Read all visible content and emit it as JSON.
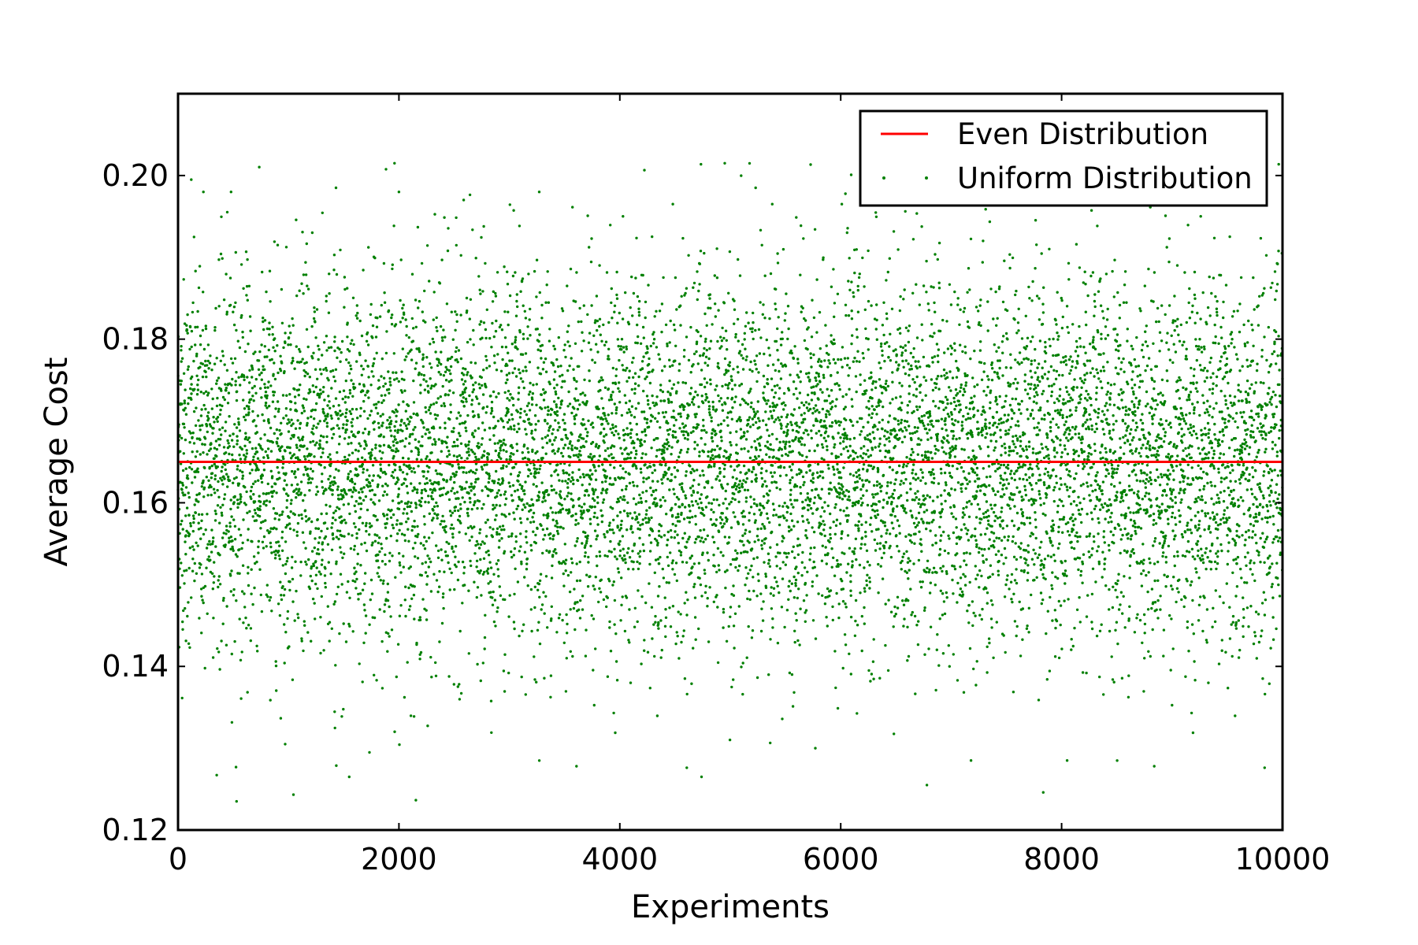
{
  "chart_data": {
    "type": "scatter",
    "title": "",
    "xlabel": "Experiments",
    "ylabel": "Average Cost",
    "xlim": [
      0,
      10000
    ],
    "ylim": [
      0.12,
      0.21
    ],
    "x_ticks": [
      0,
      2000,
      4000,
      6000,
      8000,
      10000
    ],
    "x_tick_labels": [
      "0",
      "2000",
      "4000",
      "6000",
      "8000",
      "10000"
    ],
    "y_ticks": [
      0.12,
      0.14,
      0.16,
      0.18,
      0.2
    ],
    "y_tick_labels": [
      "0.12",
      "0.14",
      "0.16",
      "0.18",
      "0.20"
    ],
    "grid": false,
    "legend_position": "top-right",
    "series": [
      {
        "name": "Even Distribution",
        "kind": "line",
        "color": "#ff0000",
        "x": [
          0,
          10000
        ],
        "y": [
          0.165,
          0.165
        ]
      },
      {
        "name": "Uniform Distribution",
        "kind": "points",
        "color": "#008000",
        "count": 10000,
        "x_range": [
          0,
          10000
        ],
        "mean": 0.165,
        "std": 0.011,
        "observed_min": 0.1235,
        "observed_max": 0.2015,
        "notable_points": [
          {
            "x": 530,
            "y": 0.1235
          },
          {
            "x": 1960,
            "y": 0.2015
          },
          {
            "x": 4950,
            "y": 0.2015
          },
          {
            "x": 6780,
            "y": 0.1255
          },
          {
            "x": 4740,
            "y": 0.1265
          },
          {
            "x": 1550,
            "y": 0.1265
          },
          {
            "x": 7180,
            "y": 0.1285
          },
          {
            "x": 8050,
            "y": 0.1285
          },
          {
            "x": 5770,
            "y": 0.13
          },
          {
            "x": 970,
            "y": 0.1305
          },
          {
            "x": 120,
            "y": 0.1995
          },
          {
            "x": 230,
            "y": 0.198
          },
          {
            "x": 480,
            "y": 0.198
          },
          {
            "x": 2000,
            "y": 0.198
          },
          {
            "x": 1430,
            "y": 0.1985
          },
          {
            "x": 3270,
            "y": 0.198
          },
          {
            "x": 5230,
            "y": 0.1985
          },
          {
            "x": 5380,
            "y": 0.1965
          },
          {
            "x": 6010,
            "y": 0.1965
          },
          {
            "x": 4480,
            "y": 0.1965
          }
        ]
      }
    ]
  }
}
